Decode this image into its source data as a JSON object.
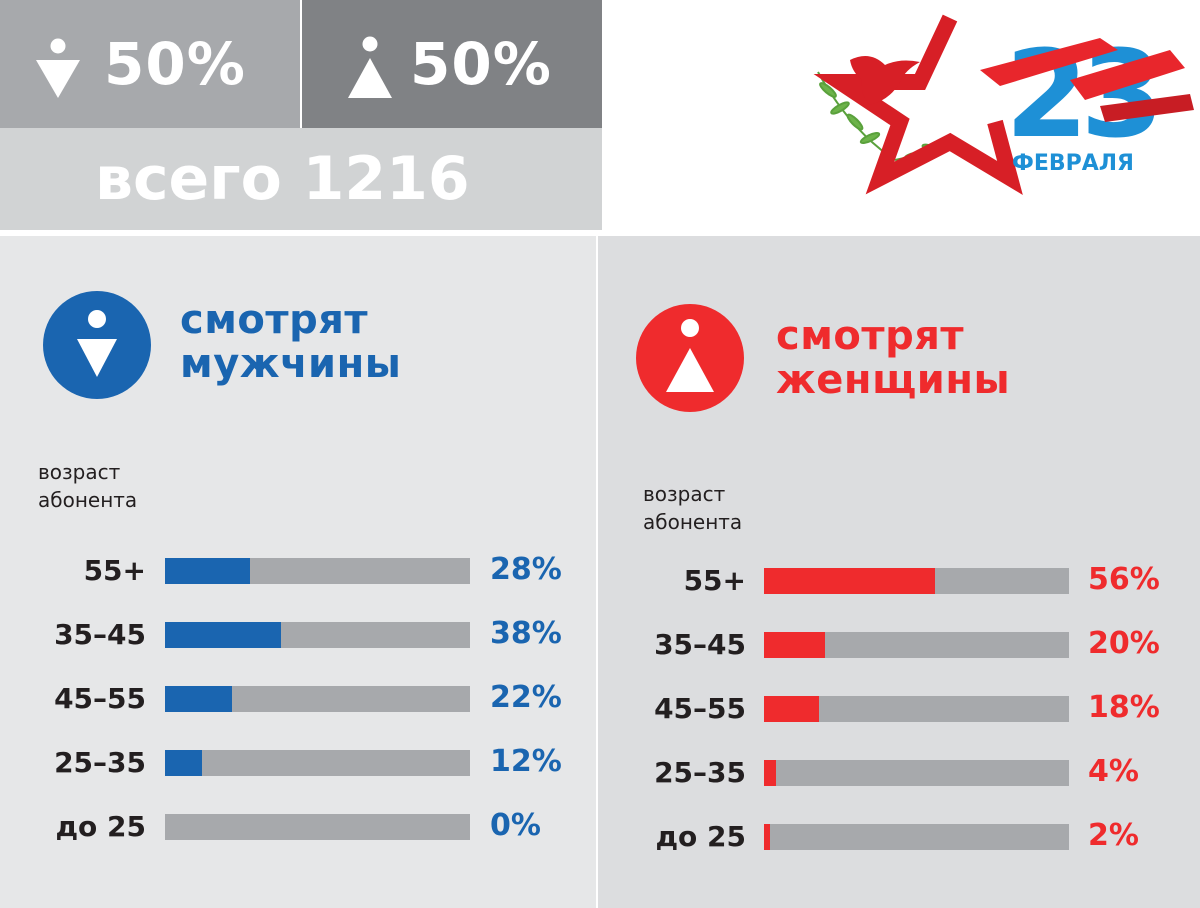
{
  "top_stats": {
    "male_share": "50%",
    "female_share": "50%",
    "total_text": "всего 1216"
  },
  "logo": {
    "number": "23",
    "month": "ФЕВРАЛЯ"
  },
  "colors": {
    "male": "#1a65b0",
    "female": "#ef2b2d",
    "track": "#a7a9ac"
  },
  "men": {
    "title_line1": "смотрят",
    "title_line2": "мужчины",
    "age_caption_line1": "возраст",
    "age_caption_line2": "абонента",
    "icon": "male-symbol-icon"
  },
  "women": {
    "title_line1": "смотрят",
    "title_line2": "женщины",
    "age_caption_line1": "возраст",
    "age_caption_line2": "абонента",
    "icon": "female-symbol-icon"
  },
  "chart_data": [
    {
      "type": "bar",
      "orientation": "horizontal",
      "title": "смотрят мужчины",
      "categories": [
        "55+",
        "35–45",
        "45–55",
        "25–35",
        "до 25"
      ],
      "values": [
        28,
        38,
        22,
        12,
        0
      ],
      "value_labels": [
        "28%",
        "38%",
        "22%",
        "12%",
        "0%"
      ],
      "unit": "%",
      "xlim": [
        0,
        100
      ],
      "color": "#1a65b0"
    },
    {
      "type": "bar",
      "orientation": "horizontal",
      "title": "смотрят женщины",
      "categories": [
        "55+",
        "35–45",
        "45–55",
        "25–35",
        "до 25"
      ],
      "values": [
        56,
        20,
        18,
        4,
        2
      ],
      "value_labels": [
        "56%",
        "20%",
        "18%",
        "4%",
        "2%"
      ],
      "unit": "%",
      "xlim": [
        0,
        100
      ],
      "color": "#ef2b2d"
    }
  ]
}
